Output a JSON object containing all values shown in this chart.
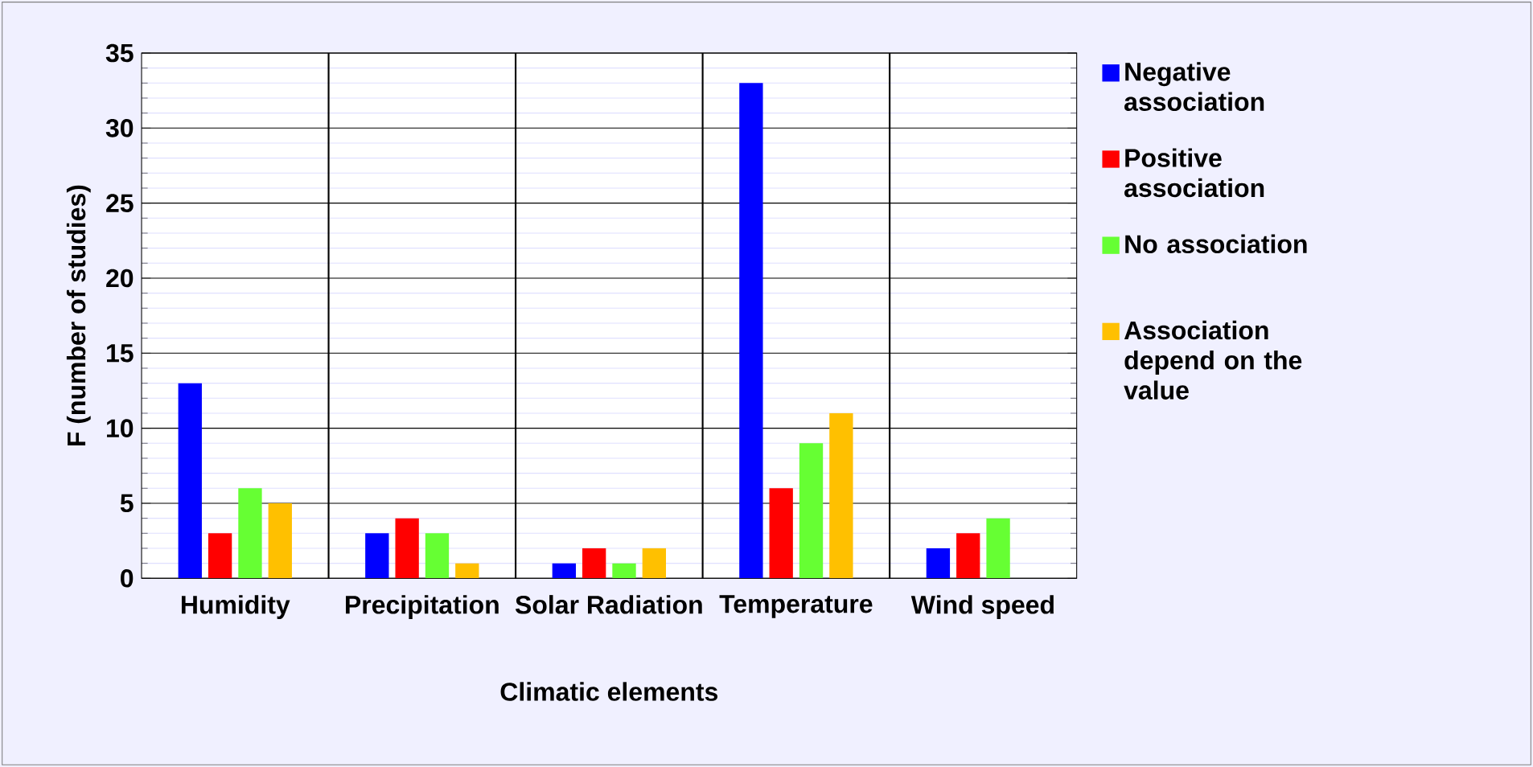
{
  "chart_data": {
    "type": "bar",
    "xlabel": "Climatic elements",
    "ylabel": "F (number of studies)",
    "categories": [
      "Humidity",
      "Precipitation",
      "Solar Radiation",
      "Temperature",
      "Wind speed"
    ],
    "series": [
      {
        "name": "Negative association",
        "color": "#0000ff",
        "values": [
          13,
          3,
          1,
          33,
          2
        ]
      },
      {
        "name": "Positive association",
        "color": "#ff0000",
        "values": [
          3,
          4,
          2,
          6,
          3
        ]
      },
      {
        "name": "No association",
        "color": "#66ff33",
        "values": [
          6,
          3,
          1,
          9,
          4
        ]
      },
      {
        "name": "Association depend on the value",
        "color": "#ffc000",
        "values": [
          5,
          1,
          2,
          11,
          0
        ]
      }
    ],
    "ylim": [
      0,
      35
    ],
    "yticks": [
      0,
      5,
      10,
      15,
      20,
      25,
      30,
      35
    ],
    "grid": true,
    "legend": "right"
  }
}
